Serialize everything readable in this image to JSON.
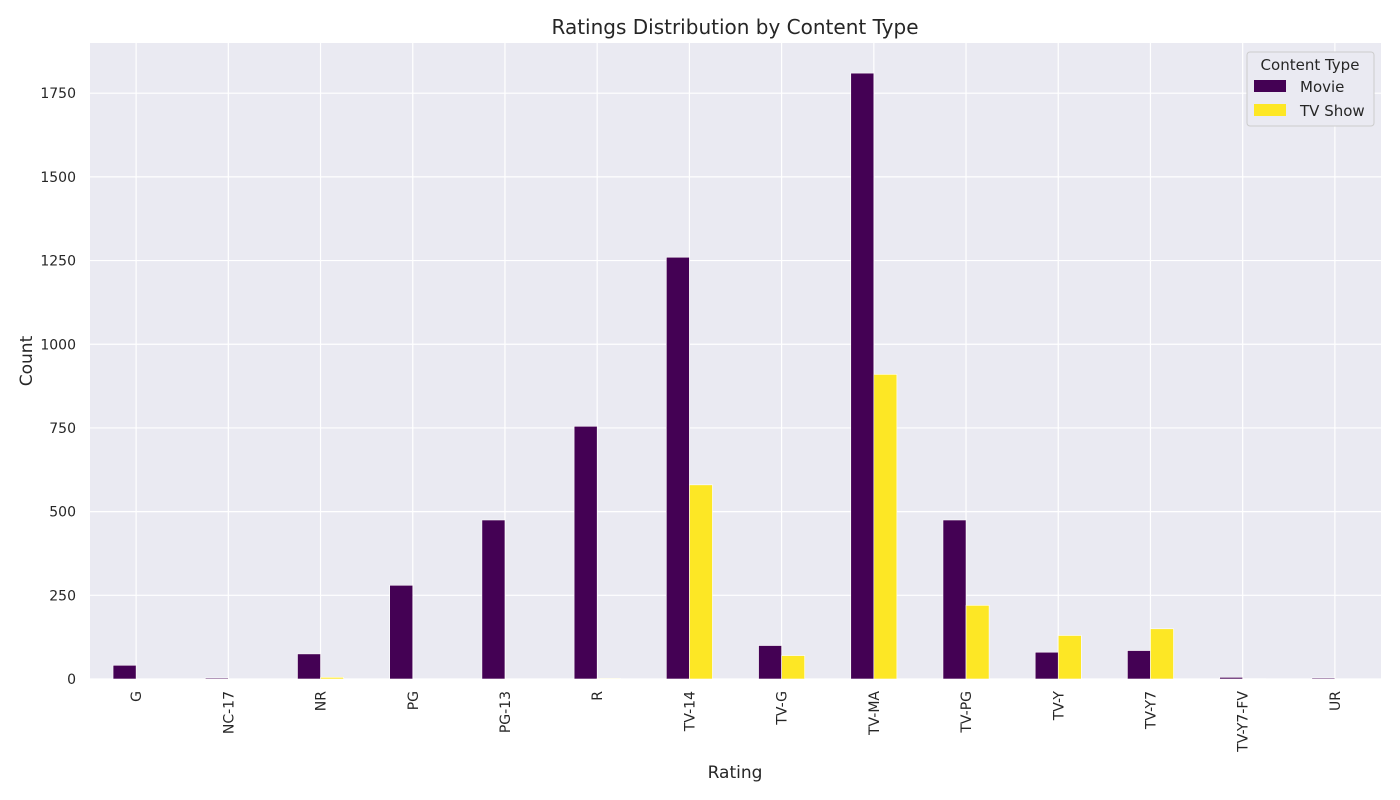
{
  "chart_data": {
    "type": "bar",
    "title": "Ratings Distribution by Content Type",
    "xlabel": "Rating",
    "ylabel": "Count",
    "categories": [
      "G",
      "NC-17",
      "NR",
      "PG",
      "PG-13",
      "R",
      "TV-14",
      "TV-G",
      "TV-MA",
      "TV-PG",
      "TV-Y",
      "TV-Y7",
      "TV-Y7-FV",
      "UR"
    ],
    "series": [
      {
        "name": "Movie",
        "color": "#440154",
        "values": [
          41,
          3,
          75,
          280,
          475,
          755,
          1260,
          100,
          1810,
          475,
          80,
          85,
          5,
          3
        ]
      },
      {
        "name": "TV Show",
        "color": "#fde725",
        "values": [
          0,
          0,
          5,
          0,
          0,
          2,
          580,
          70,
          910,
          220,
          130,
          150,
          1,
          0
        ]
      }
    ],
    "ylim": [
      0,
      1900
    ],
    "yticks": [
      0,
      250,
      500,
      750,
      1000,
      1250,
      1500,
      1750
    ],
    "grid": true,
    "background": "#eaeaf2",
    "legend": {
      "title": "Content Type",
      "placement": "top-right"
    }
  }
}
